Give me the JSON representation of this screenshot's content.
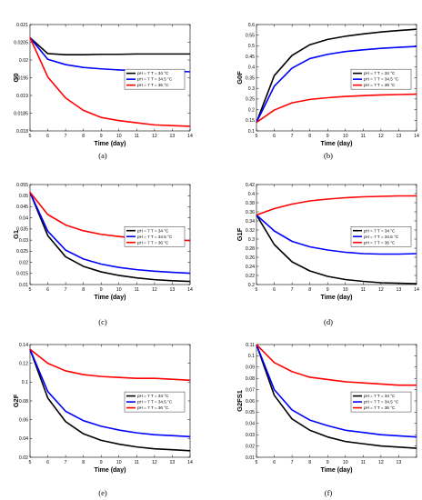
{
  "colors": {
    "t34": "#000000",
    "t345": "#0000ff",
    "t36": "#ff0000"
  },
  "chart_data": [
    {
      "type": "line",
      "panel": "(a)",
      "ylabel": "G0",
      "xlabel": "Time (day)",
      "x": [
        5,
        6,
        7,
        8,
        9,
        10,
        11,
        12,
        13,
        14
      ],
      "xlim": [
        5,
        14
      ],
      "xticks": [
        "5",
        "6",
        "7",
        "8",
        "9",
        "10",
        "11",
        "12",
        "13",
        "14"
      ],
      "ylim": [
        0.018,
        0.021
      ],
      "yticks": [
        "0.018",
        "0.0185",
        "0.019",
        "0.0195",
        "0.02",
        "0.0205",
        "0.021"
      ],
      "legend_pos": "right",
      "series": [
        {
          "name": "pH = 7 T = 34 °C",
          "color": "#000000",
          "values": [
            0.02063,
            0.02018,
            0.02015,
            0.02015,
            0.02016,
            0.02016,
            0.02017,
            0.02017,
            0.02017,
            0.02017
          ]
        },
        {
          "name": "pH = 7 T = 34.5 °C",
          "color": "#0000ff",
          "values": [
            0.02063,
            0.02002,
            0.01987,
            0.01979,
            0.01975,
            0.01972,
            0.0197,
            0.01969,
            0.01968,
            0.01967
          ]
        },
        {
          "name": "pH = 7 T = 36 °C",
          "color": "#ff0000",
          "values": [
            0.02063,
            0.01952,
            0.01893,
            0.01858,
            0.01838,
            0.01829,
            0.01823,
            0.01817,
            0.01815,
            0.01813
          ]
        }
      ]
    },
    {
      "type": "line",
      "panel": "(b)",
      "ylabel": "G0F",
      "xlabel": "Time (day)",
      "x": [
        5,
        6,
        7,
        8,
        9,
        10,
        11,
        12,
        13,
        14
      ],
      "xlim": [
        5,
        14
      ],
      "xticks": [
        "5",
        "6",
        "7",
        "8",
        "9",
        "10",
        "11",
        "12",
        "13",
        "14"
      ],
      "ylim": [
        0.1,
        0.6
      ],
      "yticks": [
        "0.1",
        "0.15",
        "0.2",
        "0.25",
        "0.3",
        "0.35",
        "0.4",
        "0.45",
        "0.5",
        "0.55",
        "0.6"
      ],
      "legend_pos": "right",
      "series": [
        {
          "name": "pH = 7 T = 34 °C",
          "color": "#000000",
          "values": [
            0.14,
            0.36,
            0.455,
            0.505,
            0.53,
            0.545,
            0.556,
            0.565,
            0.572,
            0.578
          ]
        },
        {
          "name": "pH = 7 T = 34.5 °C",
          "color": "#0000ff",
          "values": [
            0.14,
            0.31,
            0.395,
            0.44,
            0.46,
            0.473,
            0.481,
            0.488,
            0.493,
            0.497
          ]
        },
        {
          "name": "pH = 7 T = 36 °C",
          "color": "#ff0000",
          "values": [
            0.14,
            0.198,
            0.232,
            0.248,
            0.256,
            0.262,
            0.266,
            0.269,
            0.271,
            0.273
          ]
        }
      ]
    },
    {
      "type": "line",
      "panel": "(c)",
      "ylabel": "G1",
      "xlabel": "Time (day)",
      "x": [
        5,
        6,
        7,
        8,
        9,
        10,
        11,
        12,
        13,
        14
      ],
      "xlim": [
        5,
        14
      ],
      "xticks": [
        "5",
        "6",
        "7",
        "8",
        "9",
        "10",
        "11",
        "12",
        "13",
        "14"
      ],
      "ylim": [
        0.01,
        0.055
      ],
      "yticks": [
        "0.01",
        "0.015",
        "0.02",
        "0.025",
        "0.03",
        "0.035",
        "0.04",
        "0.045",
        "0.05",
        "0.055"
      ],
      "legend_pos": "right",
      "series": [
        {
          "name": "pH = 7 T = 34 °C",
          "color": "#000000",
          "values": [
            0.0515,
            0.032,
            0.0225,
            0.0182,
            0.0157,
            0.0141,
            0.013,
            0.0122,
            0.0117,
            0.0114
          ]
        },
        {
          "name": "pH = 7 T = 34.5 °C",
          "color": "#0000ff",
          "values": [
            0.0515,
            0.034,
            0.0255,
            0.0215,
            0.0192,
            0.0177,
            0.0167,
            0.016,
            0.0155,
            0.0151
          ]
        },
        {
          "name": "pH = 7 T = 36 °C",
          "color": "#ff0000",
          "values": [
            0.0515,
            0.0415,
            0.0368,
            0.0342,
            0.0326,
            0.0316,
            0.0309,
            0.0304,
            0.0301,
            0.0298
          ]
        }
      ]
    },
    {
      "type": "line",
      "panel": "(d)",
      "ylabel": "G1F",
      "xlabel": "Time (day)",
      "x": [
        5,
        6,
        7,
        8,
        9,
        10,
        11,
        12,
        13,
        14
      ],
      "xlim": [
        5,
        14
      ],
      "xticks": [
        "5",
        "6",
        "7",
        "8",
        "9",
        "10",
        "11",
        "12",
        "13",
        "14"
      ],
      "ylim": [
        0.2,
        0.42
      ],
      "yticks": [
        "0.2",
        "0.22",
        "0.24",
        "0.26",
        "0.28",
        "0.3",
        "0.32",
        "0.34",
        "0.36",
        "0.38",
        "0.4",
        "0.42"
      ],
      "legend_pos": "right",
      "series": [
        {
          "name": "pH = 7 T = 34 °C",
          "color": "#000000",
          "values": [
            0.353,
            0.288,
            0.25,
            0.23,
            0.218,
            0.211,
            0.207,
            0.204,
            0.203,
            0.202
          ]
        },
        {
          "name": "pH = 7 T = 34.5 °C",
          "color": "#0000ff",
          "values": [
            0.353,
            0.318,
            0.295,
            0.283,
            0.276,
            0.271,
            0.268,
            0.267,
            0.267,
            0.268
          ]
        },
        {
          "name": "pH = 7 T = 36 °C",
          "color": "#ff0000",
          "values": [
            0.353,
            0.367,
            0.377,
            0.384,
            0.388,
            0.391,
            0.393,
            0.394,
            0.395,
            0.395
          ]
        }
      ]
    },
    {
      "type": "line",
      "panel": "(e)",
      "ylabel": "G2F",
      "xlabel": "Time (day)",
      "x": [
        5,
        6,
        7,
        8,
        9,
        10,
        11,
        12,
        13,
        14
      ],
      "xlim": [
        5,
        14
      ],
      "xticks": [
        "5",
        "6",
        "7",
        "8",
        "9",
        "10",
        "11",
        "12",
        "13",
        "14"
      ],
      "ylim": [
        0.02,
        0.14
      ],
      "yticks": [
        "0.02",
        "0.04",
        "0.06",
        "0.08",
        "0.1",
        "0.12",
        "0.14"
      ],
      "legend_pos": "right",
      "series": [
        {
          "name": "pH = 7 T = 34 °C",
          "color": "#000000",
          "values": [
            0.135,
            0.083,
            0.058,
            0.045,
            0.038,
            0.034,
            0.031,
            0.029,
            0.028,
            0.027
          ]
        },
        {
          "name": "pH = 7 T = 34.5 °C",
          "color": "#0000ff",
          "values": [
            0.135,
            0.09,
            0.069,
            0.059,
            0.053,
            0.049,
            0.046,
            0.044,
            0.043,
            0.042
          ]
        },
        {
          "name": "pH = 7 T = 36 °C",
          "color": "#ff0000",
          "values": [
            0.135,
            0.12,
            0.112,
            0.108,
            0.106,
            0.105,
            0.104,
            0.104,
            0.103,
            0.102
          ]
        }
      ]
    },
    {
      "type": "line",
      "panel": "(f)",
      "ylabel": "G2FS1",
      "xlabel": "Time (day)",
      "x": [
        5,
        6,
        7,
        8,
        9,
        10,
        11,
        12,
        13,
        14
      ],
      "xlim": [
        5,
        14
      ],
      "xticks": [
        "5",
        "6",
        "7",
        "8",
        "9",
        "10",
        "11",
        "12",
        "13",
        ""
      ],
      "ylim": [
        0.01,
        0.11
      ],
      "yticks": [
        "0.01",
        "0.02",
        "0.03",
        "0.04",
        "0.05",
        "0.06",
        "0.07",
        "0.08",
        "0.09",
        "0.1",
        "0.11"
      ],
      "legend_pos": "right",
      "series": [
        {
          "name": "pH = 7 T = 34 °C",
          "color": "#000000",
          "values": [
            0.11,
            0.065,
            0.044,
            0.034,
            0.028,
            0.024,
            0.022,
            0.02,
            0.019,
            0.018
          ]
        },
        {
          "name": "pH = 7 T = 34.5 °C",
          "color": "#0000ff",
          "values": [
            0.11,
            0.07,
            0.052,
            0.043,
            0.038,
            0.034,
            0.032,
            0.03,
            0.029,
            0.028
          ]
        },
        {
          "name": "pH = 7 T = 36 °C",
          "color": "#ff0000",
          "values": [
            0.11,
            0.094,
            0.086,
            0.081,
            0.079,
            0.077,
            0.076,
            0.075,
            0.074,
            0.074
          ]
        }
      ]
    }
  ]
}
